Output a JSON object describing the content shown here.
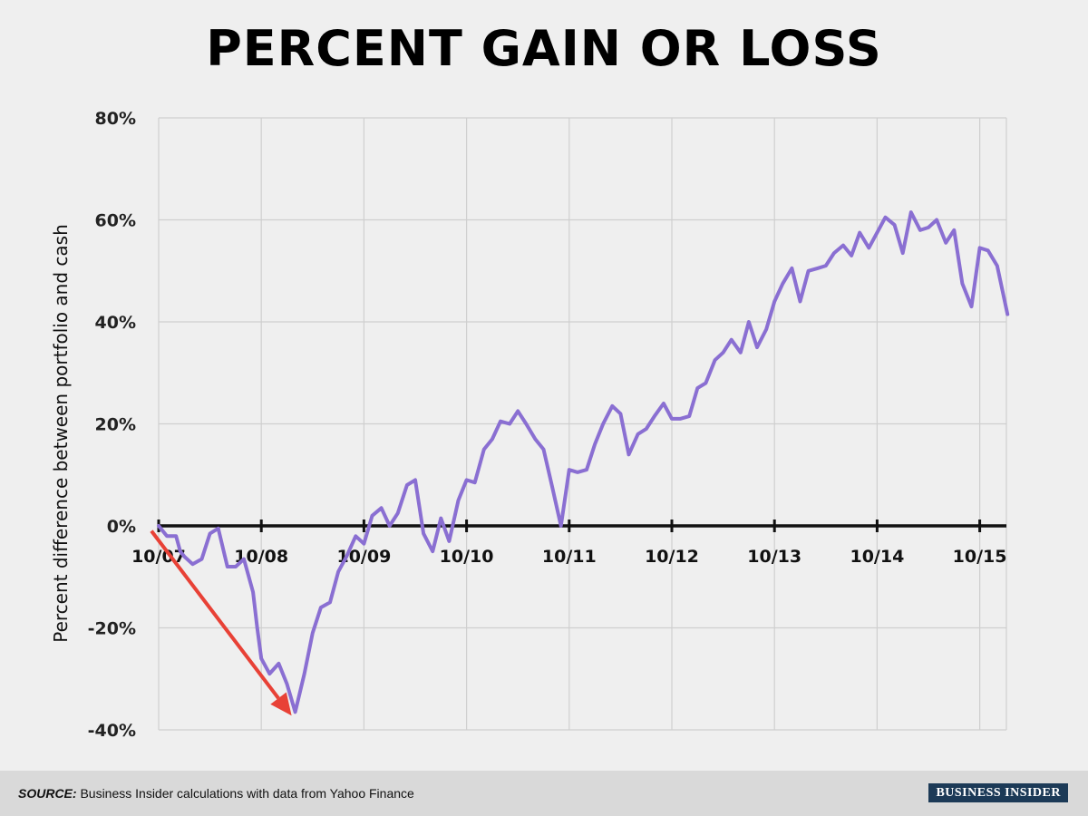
{
  "footer": {
    "source_label": "SOURCE:",
    "source_text": " Business Insider calculations with data from Yahoo Finance",
    "logo_text": "BUSINESS INSIDER"
  },
  "chart_data": {
    "type": "line",
    "title": "PERCENT GAIN OR LOSS",
    "ylabel": "Percent difference between portfolio and cash",
    "xlabel": "",
    "ylim": [
      -40,
      80
    ],
    "xlim": [
      "10/07",
      "10/15 + ~3 months"
    ],
    "yticks": [
      "80%",
      "60%",
      "40%",
      "20%",
      "0%",
      "-20%",
      "-40%"
    ],
    "ytick_values": [
      80,
      60,
      40,
      20,
      0,
      -20,
      -40
    ],
    "xticks": [
      "10/07",
      "10/08",
      "10/09",
      "10/10",
      "10/11",
      "10/12",
      "10/13",
      "10/14",
      "10/15"
    ],
    "grid": true,
    "line_color": "#8a6fd2",
    "arrow_color": "#e84136",
    "annotation_arrow": {
      "from": [
        "10/07",
        -1
      ],
      "to": [
        "~7/09",
        -37
      ]
    },
    "series": [
      {
        "x_years_since_1007": [
          0,
          0.08,
          0.17,
          0.21,
          0.25,
          0.33,
          0.42,
          0.5,
          0.58,
          0.67,
          0.75,
          0.83,
          0.92,
          0.96,
          1.0,
          1.08,
          1.17,
          1.25,
          1.33,
          1.42,
          1.5,
          1.58,
          1.67,
          1.75,
          1.83,
          1.92,
          2.0,
          2.08,
          2.17,
          2.25,
          2.33,
          2.42,
          2.5,
          2.58,
          2.67,
          2.75,
          2.83,
          2.92,
          3.0,
          3.08,
          3.17,
          3.25,
          3.33,
          3.42,
          3.5,
          3.58,
          3.67,
          3.75,
          3.83,
          3.92,
          4.0,
          4.08,
          4.17,
          4.25,
          4.33,
          4.42,
          4.5,
          4.58,
          4.67,
          4.75,
          4.83,
          4.92,
          5.0,
          5.08,
          5.17,
          5.25,
          5.33,
          5.42,
          5.5,
          5.58,
          5.67,
          5.75,
          5.83,
          5.92,
          6.0,
          6.08,
          6.17,
          6.25,
          6.33,
          6.42,
          6.5,
          6.58,
          6.67,
          6.75,
          6.83,
          6.92,
          7.0,
          7.08,
          7.17,
          7.25,
          7.33,
          7.42,
          7.5,
          7.58,
          7.67,
          7.75,
          7.83,
          7.92,
          8.0,
          8.08,
          8.17,
          8.27
        ],
        "values": [
          0,
          -2,
          -2,
          -5,
          -6,
          -7.5,
          -6.5,
          -1.5,
          -0.5,
          -8,
          -8,
          -6.5,
          -13,
          -20,
          -26,
          -29,
          -27,
          -31,
          -36.5,
          -29,
          -21,
          -16,
          -15,
          -9,
          -6,
          -2,
          -3.5,
          2,
          3.5,
          0,
          2.5,
          8,
          9,
          -1.5,
          -5,
          1.5,
          -3,
          5,
          9,
          8.5,
          15,
          17,
          20.5,
          20,
          22.5,
          20,
          17,
          15,
          8,
          0,
          11,
          10.5,
          11,
          16,
          20,
          23.5,
          22,
          14,
          18,
          19,
          21.5,
          24,
          21,
          21,
          21.5,
          27,
          28,
          32.5,
          34,
          36.5,
          34,
          40,
          35,
          38.5,
          44,
          47.5,
          50.5,
          44,
          50,
          50.5,
          51,
          53.5,
          55,
          53,
          57.5,
          54.5,
          57.5,
          60.5,
          59,
          53.5,
          61.5,
          58,
          58.5,
          60,
          55.5,
          58,
          47.5,
          43,
          54.5,
          54,
          51,
          41.5
        ]
      }
    ]
  }
}
